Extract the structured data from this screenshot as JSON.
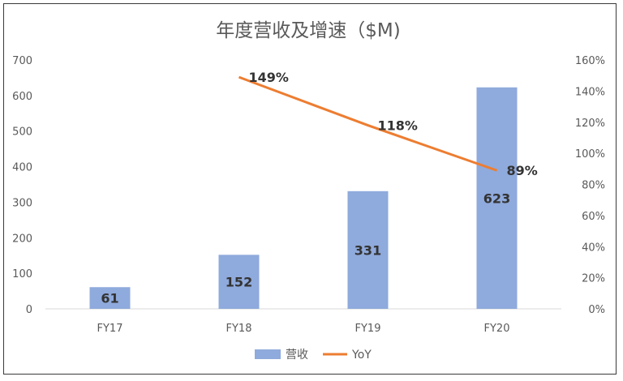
{
  "chart_data": {
    "type": "bar",
    "title": "年度营收及增速（$M)",
    "categories": [
      "FY17",
      "FY18",
      "FY19",
      "FY20"
    ],
    "series": [
      {
        "name": "营收",
        "type": "bar",
        "axis": "left",
        "values": [
          61,
          152,
          331,
          623
        ],
        "color": "#8faadc",
        "labels": [
          "61",
          "152",
          "331",
          "623"
        ]
      },
      {
        "name": "YoY",
        "type": "line",
        "axis": "right",
        "values": [
          null,
          149,
          118,
          89
        ],
        "color": "#ed7d31",
        "labels": [
          "",
          "149%",
          "118%",
          "89%"
        ]
      }
    ],
    "y_left": {
      "min": 0,
      "max": 700,
      "ticks": [
        "0",
        "100",
        "200",
        "300",
        "400",
        "500",
        "600",
        "700"
      ]
    },
    "y_right": {
      "min": 0,
      "max": 160,
      "ticks": [
        "0%",
        "20%",
        "40%",
        "60%",
        "80%",
        "100%",
        "120%",
        "140%",
        "160%"
      ]
    },
    "grid": false,
    "legend": "bottom"
  }
}
